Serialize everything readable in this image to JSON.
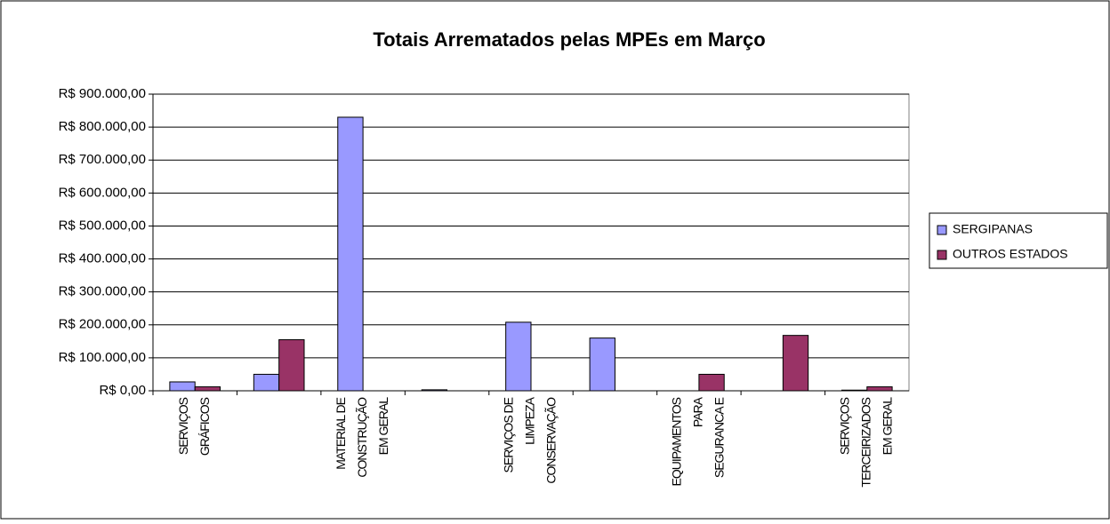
{
  "chart_data": {
    "type": "bar",
    "title": "Totais Arrematados pelas MPEs em Março",
    "categories": [
      "SERVIÇOS\nGRÁFICOS",
      null,
      "MATERIAL DE\nCONSTRUÇÃO\nEM GERAL",
      null,
      "SERVIÇOS DE\nLIMPEZA\nCONSERVAÇÃO",
      null,
      "EQUIPAMENTOS\nPARA\nSEGURANCA E",
      null,
      "SERVIÇOS\nTERCEIRIZADOS\nEM GERAL"
    ],
    "series": [
      {
        "name": "SERGIPANAS",
        "color": "#9999ff",
        "values": [
          27000,
          50000,
          830000,
          3000,
          208000,
          160000,
          0,
          0,
          2000
        ]
      },
      {
        "name": "OUTROS ESTADOS",
        "color": "#993366",
        "values": [
          12000,
          155000,
          0,
          0,
          0,
          0,
          50000,
          168000,
          12000
        ]
      }
    ],
    "ylim": [
      0,
      900000
    ],
    "yticks": [
      {
        "value": 0,
        "label": "R$ 0,00"
      },
      {
        "value": 100000,
        "label": "R$ 100.000,00"
      },
      {
        "value": 200000,
        "label": "R$ 200.000,00"
      },
      {
        "value": 300000,
        "label": "R$ 300.000,00"
      },
      {
        "value": 400000,
        "label": "R$ 400.000,00"
      },
      {
        "value": 500000,
        "label": "R$ 500.000,00"
      },
      {
        "value": 600000,
        "label": "R$ 600.000,00"
      },
      {
        "value": 700000,
        "label": "R$ 700.000,00"
      },
      {
        "value": 800000,
        "label": "R$ 800.000,00"
      },
      {
        "value": 900000,
        "label": "R$ 900.000,00"
      }
    ],
    "grid": true,
    "legend": "right"
  }
}
